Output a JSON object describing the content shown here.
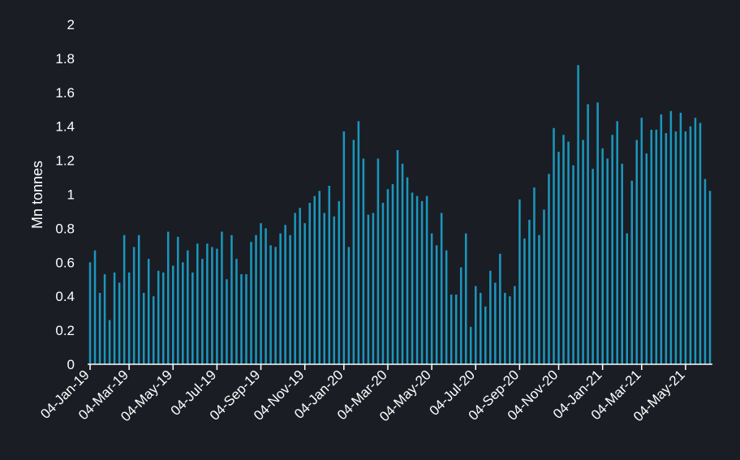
{
  "chart_data": {
    "type": "bar",
    "title": "",
    "xlabel": "",
    "ylabel": "Mn tonnes",
    "ylim": [
      0,
      2
    ],
    "yticks": [
      "0",
      "0.2",
      "0.4",
      "0.6",
      "0.8",
      "1",
      "1.2",
      "1.4",
      "1.6",
      "1.8",
      "2"
    ],
    "grid": false,
    "bar_color": "#1a97bd",
    "axis_color": "#ffffff",
    "background": "#1b1d24",
    "xtick_labels": [
      "04-Jan-19",
      "04-Mar-19",
      "04-May-19",
      "04-Jul-19",
      "04-Sep-19",
      "04-Nov-19",
      "04-Jan-20",
      "04-Mar-20",
      "04-May-20",
      "04-Jul-20",
      "04-Sep-20",
      "04-Nov-20",
      "04-Jan-21",
      "04-Mar-21",
      "04-May-21"
    ],
    "xtick_indices": [
      0,
      8,
      17,
      26,
      35,
      44,
      52,
      61,
      70,
      79,
      88,
      96,
      105,
      113,
      122
    ],
    "categories": [
      "04-Jan-19",
      "11-Jan-19",
      "18-Jan-19",
      "25-Jan-19",
      "01-Feb-19",
      "08-Feb-19",
      "15-Feb-19",
      "22-Feb-19",
      "01-Mar-19",
      "08-Mar-19",
      "15-Mar-19",
      "22-Mar-19",
      "29-Mar-19",
      "05-Apr-19",
      "12-Apr-19",
      "19-Apr-19",
      "26-Apr-19",
      "03-May-19",
      "10-May-19",
      "17-May-19",
      "24-May-19",
      "31-May-19",
      "07-Jun-19",
      "14-Jun-19",
      "21-Jun-19",
      "28-Jun-19",
      "05-Jul-19",
      "12-Jul-19",
      "19-Jul-19",
      "26-Jul-19",
      "02-Aug-19",
      "09-Aug-19",
      "16-Aug-19",
      "23-Aug-19",
      "30-Aug-19",
      "06-Sep-19",
      "13-Sep-19",
      "20-Sep-19",
      "27-Sep-19",
      "04-Oct-19",
      "11-Oct-19",
      "18-Oct-19",
      "25-Oct-19",
      "01-Nov-19",
      "08-Nov-19",
      "15-Nov-19",
      "22-Nov-19",
      "29-Nov-19",
      "06-Dec-19",
      "13-Dec-19",
      "20-Dec-19",
      "27-Dec-19",
      "03-Jan-20",
      "10-Jan-20",
      "17-Jan-20",
      "24-Jan-20",
      "31-Jan-20",
      "07-Feb-20",
      "14-Feb-20",
      "21-Feb-20",
      "28-Feb-20",
      "06-Mar-20",
      "13-Mar-20",
      "20-Mar-20",
      "27-Mar-20",
      "03-Apr-20",
      "10-Apr-20",
      "17-Apr-20",
      "24-Apr-20",
      "01-May-20",
      "08-May-20",
      "15-May-20",
      "22-May-20",
      "29-May-20",
      "05-Jun-20",
      "12-Jun-20",
      "19-Jun-20",
      "26-Jun-20",
      "03-Jul-20",
      "10-Jul-20",
      "17-Jul-20",
      "24-Jul-20",
      "31-Jul-20",
      "07-Aug-20",
      "14-Aug-20",
      "21-Aug-20",
      "28-Aug-20",
      "04-Sep-20",
      "11-Sep-20",
      "18-Sep-20",
      "25-Sep-20",
      "02-Oct-20",
      "09-Oct-20",
      "16-Oct-20",
      "23-Oct-20",
      "30-Oct-20",
      "06-Nov-20",
      "13-Nov-20",
      "20-Nov-20",
      "27-Nov-20",
      "04-Dec-20",
      "11-Dec-20",
      "18-Dec-20",
      "25-Dec-20",
      "01-Jan-21",
      "08-Jan-21",
      "15-Jan-21",
      "22-Jan-21",
      "29-Jan-21",
      "05-Feb-21",
      "12-Feb-21",
      "19-Feb-21",
      "26-Feb-21",
      "05-Mar-21",
      "12-Mar-21",
      "19-Mar-21",
      "26-Mar-21",
      "02-Apr-21",
      "09-Apr-21",
      "16-Apr-21",
      "23-Apr-21",
      "30-Apr-21",
      "07-May-21",
      "14-May-21",
      "21-May-21",
      "28-May-21",
      "04-Jun-21",
      "11-Jun-21"
    ],
    "values": [
      0.6,
      0.67,
      0.42,
      0.53,
      0.26,
      0.54,
      0.48,
      0.76,
      0.54,
      0.69,
      0.76,
      0.42,
      0.62,
      0.4,
      0.55,
      0.54,
      0.78,
      0.58,
      0.75,
      0.6,
      0.67,
      0.54,
      0.71,
      0.62,
      0.71,
      0.69,
      0.68,
      0.78,
      0.5,
      0.76,
      0.62,
      0.53,
      0.53,
      0.72,
      0.76,
      0.83,
      0.8,
      0.7,
      0.69,
      0.77,
      0.82,
      0.76,
      0.89,
      0.92,
      0.83,
      0.95,
      0.99,
      1.02,
      0.89,
      1.05,
      0.87,
      0.96,
      1.37,
      0.69,
      1.32,
      1.43,
      1.21,
      0.88,
      0.89,
      1.21,
      0.95,
      1.03,
      1.06,
      1.26,
      1.18,
      1.1,
      1.01,
      0.99,
      0.96,
      0.99,
      0.77,
      0.7,
      0.89,
      0.67,
      0.41,
      0.41,
      0.57,
      0.77,
      0.22,
      0.46,
      0.42,
      0.34,
      0.55,
      0.48,
      0.65,
      0.42,
      0.4,
      0.46,
      0.97,
      0.74,
      0.85,
      1.04,
      0.76,
      0.91,
      1.12,
      1.39,
      1.25,
      1.35,
      1.31,
      1.17,
      1.76,
      1.32,
      1.53,
      1.15,
      1.54,
      1.27,
      1.21,
      1.35,
      1.43,
      1.18,
      0.77,
      1.08,
      1.32,
      1.45,
      1.24,
      1.38,
      1.38,
      1.47,
      1.36,
      1.49,
      1.37,
      1.48,
      1.37,
      1.4,
      1.45,
      1.42,
      1.09,
      1.02
    ]
  }
}
